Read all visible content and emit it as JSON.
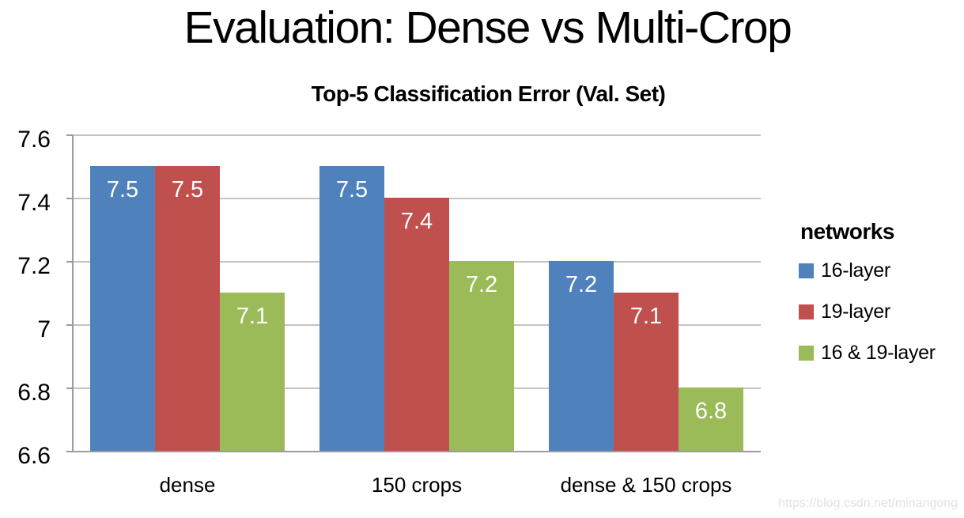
{
  "slide": {
    "title": "Evaluation: Dense vs Multi-Crop",
    "watermark": "https://blog.csdn.net/minangong"
  },
  "chart_data": {
    "type": "bar",
    "title": "Top-5 Classification Error (Val. Set)",
    "categories": [
      "dense",
      "150 crops",
      "dense & 150 crops"
    ],
    "series": [
      {
        "name": "16-layer",
        "color": "#4F81BD",
        "values": [
          7.5,
          7.5,
          7.2
        ]
      },
      {
        "name": "19-layer",
        "color": "#C0504D",
        "values": [
          7.5,
          7.4,
          7.1
        ]
      },
      {
        "name": "16 & 19-layer",
        "color": "#9BBB59",
        "values": [
          7.1,
          7.2,
          6.8
        ]
      }
    ],
    "ylim": [
      6.6,
      7.6
    ],
    "yticks": [
      "7.6",
      "7.4",
      "7.2",
      "7",
      "6.8",
      "6.6"
    ],
    "legend_title": "networks",
    "legend_position": "right",
    "grid": true,
    "bar_labels": true,
    "bar_label_color": "#FFFFFF",
    "grid_color": "#C3C3C3",
    "axis_color": "#9C9C9C"
  }
}
